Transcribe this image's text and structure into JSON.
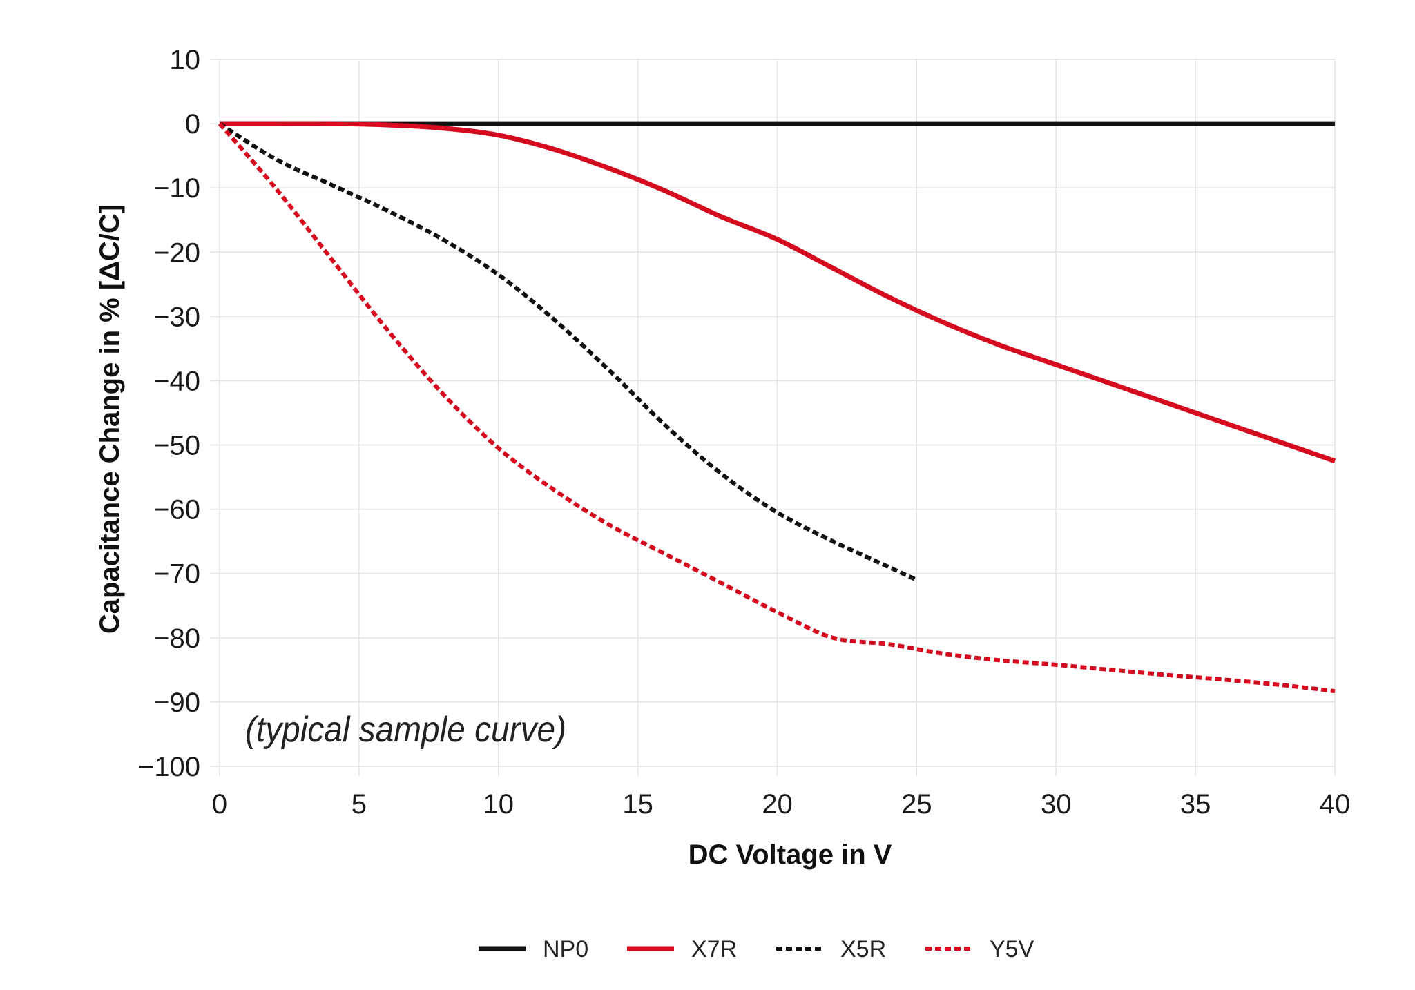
{
  "chart_data": {
    "type": "line",
    "title": "",
    "xlabel": "DC Voltage in V",
    "ylabel": "Capacitance Change in % [ΔC/C]",
    "xlim": [
      0,
      40
    ],
    "ylim": [
      -100,
      10
    ],
    "xticks": [
      0,
      5,
      10,
      15,
      20,
      25,
      30,
      35,
      40
    ],
    "yticks": [
      10,
      0,
      -10,
      -20,
      -30,
      -40,
      -50,
      -60,
      -70,
      -80,
      -90,
      -100
    ],
    "xtick_labels": [
      "0",
      "5",
      "10",
      "15",
      "20",
      "25",
      "30",
      "35",
      "40"
    ],
    "ytick_labels": [
      "10",
      "0",
      "−10",
      "−20",
      "−30",
      "−40",
      "−50",
      "−60",
      "−70",
      "−80",
      "−90",
      "−100"
    ],
    "grid": true,
    "annotation": "(typical sample curve)",
    "legend_position": "bottom",
    "series": [
      {
        "name": "NP0",
        "color": "#111111",
        "style": "solid",
        "x": [
          0,
          5,
          10,
          15,
          20,
          25,
          30,
          35,
          40
        ],
        "y": [
          0,
          0,
          0,
          0,
          0,
          0,
          0,
          0,
          0
        ]
      },
      {
        "name": "X7R",
        "color": "#d50c1f",
        "style": "solid",
        "x": [
          0,
          2,
          4,
          6,
          8,
          10,
          12,
          14,
          16,
          18,
          20,
          22,
          24,
          26,
          28,
          30,
          32,
          34,
          36,
          38,
          40
        ],
        "y": [
          0,
          0,
          0,
          -0.2,
          -0.7,
          -1.8,
          -4,
          -7,
          -10.5,
          -14.5,
          -18,
          -22.5,
          -27,
          -31,
          -34.5,
          -37.5,
          -40.5,
          -43.5,
          -46.5,
          -49.5,
          -52.5
        ]
      },
      {
        "name": "X5R",
        "color": "#111111",
        "style": "dashed",
        "x": [
          0,
          2,
          4,
          6,
          8,
          10,
          12,
          14,
          16,
          18,
          20,
          22,
          23,
          25
        ],
        "y": [
          0,
          -5.5,
          -9.5,
          -13.5,
          -18,
          -23.5,
          -30.5,
          -38.5,
          -47,
          -54.5,
          -60.5,
          -65,
          -67,
          -71
        ]
      },
      {
        "name": "Y5V",
        "color": "#d50c1f",
        "style": "dashed",
        "x": [
          0,
          2,
          4,
          6,
          8,
          10,
          12,
          14,
          16,
          18,
          20,
          22,
          24,
          26,
          28,
          30,
          32,
          34,
          36,
          38,
          40
        ],
        "y": [
          0,
          -10,
          -21,
          -32,
          -42,
          -50.5,
          -57,
          -62.5,
          -67,
          -71.5,
          -76,
          -80,
          -81,
          -82.5,
          -83.5,
          -84.2,
          -85,
          -85.8,
          -86.5,
          -87.3,
          -88.3
        ]
      }
    ]
  }
}
